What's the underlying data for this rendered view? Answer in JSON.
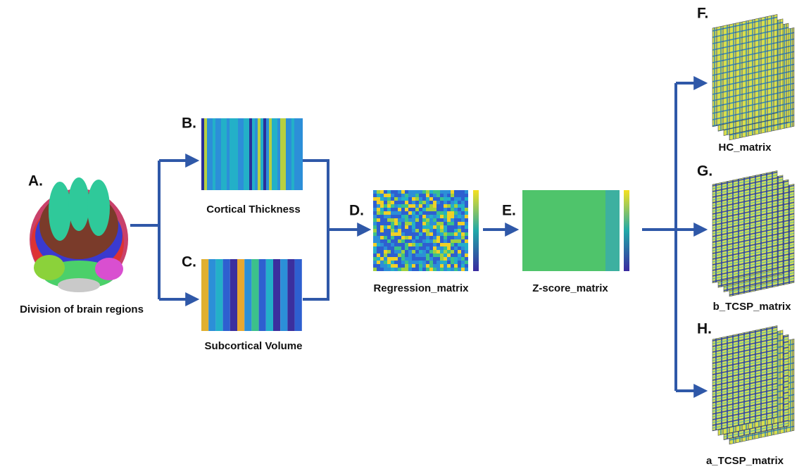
{
  "nodes": [
    {
      "letter": "A.",
      "label": "Division of brain regions"
    },
    {
      "letter": "B.",
      "label": "Cortical Thickness"
    },
    {
      "letter": "C.",
      "label": "Subcortical Volume"
    },
    {
      "letter": "D.",
      "label": "Regression_matrix"
    },
    {
      "letter": "E.",
      "label": "Z-score_matrix"
    },
    {
      "letter": "F.",
      "label": "HC_matrix"
    },
    {
      "letter": "G.",
      "label": "b_TCSP_matrix"
    },
    {
      "letter": "H.",
      "label": "a_TCSP_matrix"
    }
  ]
}
